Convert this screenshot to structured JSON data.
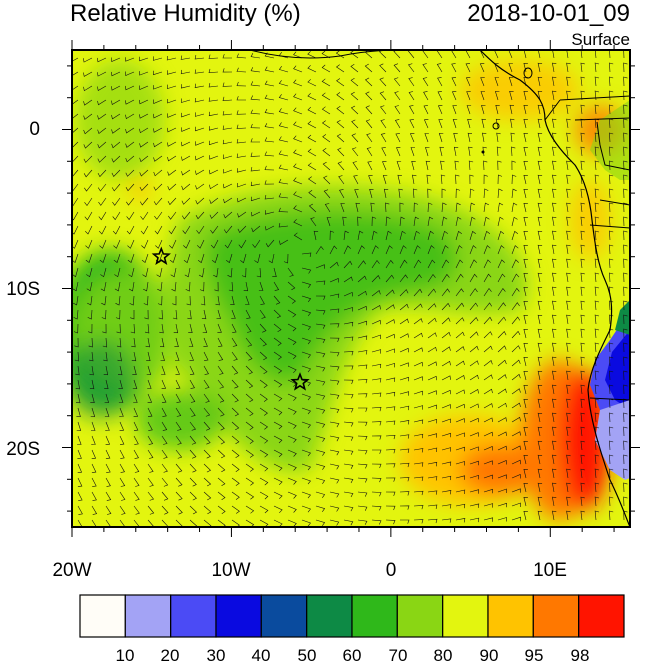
{
  "header": {
    "title": "Relative Humidity (%)",
    "datetime": "2018-10-01_09",
    "level": "Surface"
  },
  "map": {
    "lat_ticks": [
      "0",
      "10S",
      "20S"
    ],
    "lon_ticks": [
      "20W",
      "10W",
      "0",
      "10E"
    ],
    "markers": [
      {
        "name": "station-star",
        "lon": -14.4,
        "lat": -8.0
      },
      {
        "name": "station-star",
        "lon": -5.7,
        "lat": -15.9
      }
    ]
  },
  "colorbar": {
    "labels": [
      "10",
      "20",
      "30",
      "40",
      "50",
      "60",
      "70",
      "80",
      "90",
      "95",
      "98"
    ],
    "colors": [
      "#fffdf7",
      "#a3a3f5",
      "#4b4bf5",
      "#0a0ae0",
      "#0a4b9e",
      "#0d8a45",
      "#2fb81a",
      "#8ad614",
      "#e3f50f",
      "#ffc300",
      "#ff7800",
      "#ff1400"
    ]
  }
}
